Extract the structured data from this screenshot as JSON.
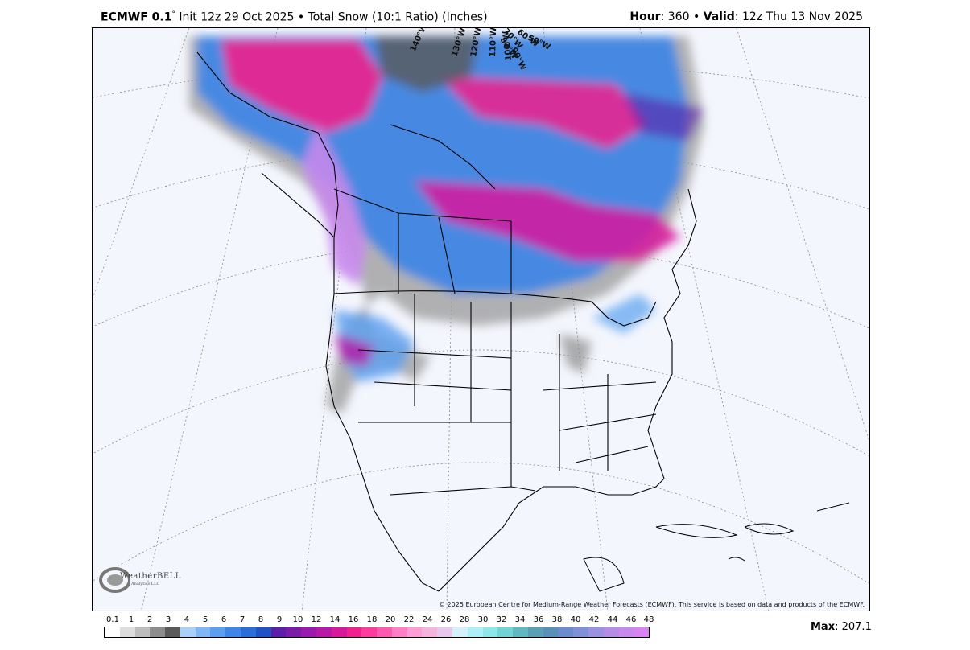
{
  "header": {
    "model": "ECMWF 0.1",
    "degree_symbol": "°",
    "init_text": "Init 12z 29 Oct 2025",
    "bullet": "•",
    "product": "Total Snow (10:1 Ratio) (Inches)",
    "hour_label": "Hour",
    "hour_value": ": 360",
    "valid_label": "Valid",
    "valid_value": ": 12z Thu 13 Nov 2025"
  },
  "map": {
    "copyright": "© 2025 European Centre for Medium-Range Weather Forecasts (ECMWF). This service is based on data and products of the ECMWF.",
    "logo_text": "WeatherBELL",
    "logo_sub": "Analytics LLC",
    "longitude_labels": [
      "140°W",
      "130°W",
      "120°W",
      "110°W",
      "100°W",
      "90°W",
      "80°W",
      "70°W",
      "60°W",
      "50°W"
    ]
  },
  "legend": {
    "labels": [
      "0.1",
      "1",
      "2",
      "3",
      "4",
      "5",
      "6",
      "7",
      "8",
      "9",
      "10",
      "12",
      "14",
      "16",
      "18",
      "20",
      "22",
      "24",
      "26",
      "28",
      "30",
      "32",
      "34",
      "36",
      "38",
      "40",
      "42",
      "44",
      "46",
      "48"
    ],
    "colors": [
      "#ffffff",
      "#dcdcdc",
      "#bdbdbd",
      "#8c8c8c",
      "#5a5a5a",
      "#a8d0f8",
      "#7db8f4",
      "#5a9ff0",
      "#3d86e8",
      "#2a6cd8",
      "#1f52c4",
      "#5a1ea8",
      "#7a1ca8",
      "#9a1ab0",
      "#b818a8",
      "#d8189c",
      "#f0208c",
      "#ff3a9c",
      "#ff5ab0",
      "#ff7ec4",
      "#ff9ed4",
      "#f4b4dc",
      "#e8c8ec",
      "#d4f0f8",
      "#aaf0f4",
      "#8ce8e8",
      "#70d4d4",
      "#60b8c0",
      "#58a0b4",
      "#5890b8",
      "#6a8ccc",
      "#8090d8",
      "#9c90e0",
      "#b48ce4",
      "#c888ec",
      "#d884f0"
    ],
    "max_label": "Max",
    "max_value": ": 207.1"
  }
}
